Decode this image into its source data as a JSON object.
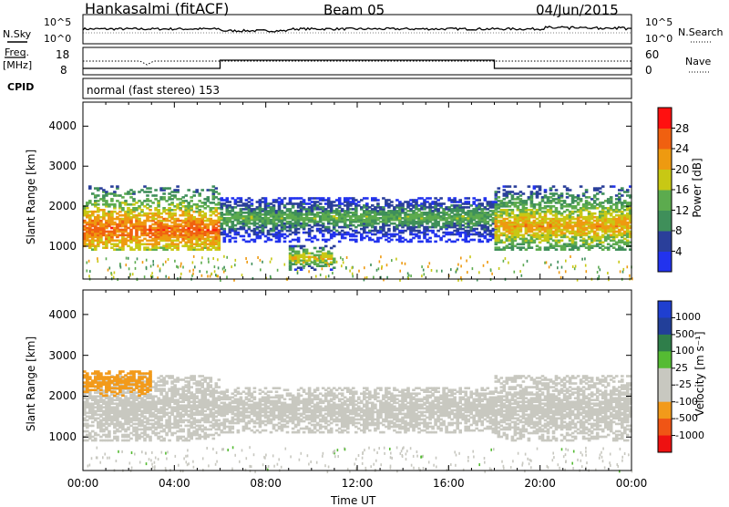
{
  "header": {
    "title": "Hankasalmi (fitACF)",
    "beam": "Beam 05",
    "date": "04/Jun/2015"
  },
  "strips": {
    "nsky_label": "N.Sky",
    "nsearch_label": "N.Search",
    "nsky_ticks": [
      "10^5",
      "10^0"
    ],
    "freq_label_1": "Freq.",
    "freq_label_2": "[MHz]",
    "freq_ticks": [
      "18",
      "8"
    ],
    "nave_label": "Nave",
    "nave_ticks": [
      "60",
      "0"
    ],
    "cpid_label": "CPID",
    "cpid_text": "normal (fast stereo) 153"
  },
  "colors": {
    "power": [
      "#2233ee",
      "#2a3f9a",
      "#3f8f5a",
      "#5cab4e",
      "#c8c814",
      "#ee9a10",
      "#f06010",
      "#ff1010"
    ],
    "velocity": [
      "#ee1111",
      "#f05515",
      "#f29a1a",
      "#c8c8c0",
      "#c8c8c0",
      "#55bb33",
      "#2f7e4a",
      "#223f99",
      "#1f3fd0"
    ]
  },
  "chart_data": [
    {
      "type": "heatmap",
      "title": "",
      "xlabel": "",
      "ylabel": "Slant Range [km]",
      "x_ticks": [
        "00:00",
        "04:00",
        "08:00",
        "12:00",
        "16:00",
        "20:00",
        "00:00"
      ],
      "y_ticks": [
        "1000",
        "2000",
        "3000",
        "4000"
      ],
      "xlim_hours": [
        0,
        24
      ],
      "ylim_km": [
        180,
        4600
      ],
      "colorbar_label": "Power [dB]",
      "colorbar_ticks": [
        "4",
        "8",
        "12",
        "16",
        "20",
        "24",
        "28"
      ],
      "colorbar_range": [
        0,
        32
      ],
      "scatter_bands": [
        {
          "t_start": 0,
          "t_end": 6,
          "range_km": [
            900,
            2500
          ],
          "core_km": 1400,
          "value": 26
        },
        {
          "t_start": 6,
          "t_end": 18,
          "range_km": [
            1100,
            2200
          ],
          "core_km": 1700,
          "value": 14
        },
        {
          "t_start": 9,
          "t_end": 11,
          "range_km": [
            400,
            1000
          ],
          "core_km": 700,
          "value": 20
        },
        {
          "t_start": 18,
          "t_end": 24,
          "range_km": [
            900,
            2500
          ],
          "core_km": 1500,
          "value": 22
        }
      ]
    },
    {
      "type": "heatmap",
      "title": "",
      "xlabel": "Time UT",
      "ylabel": "Slant Range [km]",
      "x_ticks": [
        "00:00",
        "04:00",
        "08:00",
        "12:00",
        "16:00",
        "20:00",
        "00:00"
      ],
      "y_ticks": [
        "1000",
        "2000",
        "3000",
        "4000"
      ],
      "xlim_hours": [
        0,
        24
      ],
      "ylim_km": [
        180,
        4600
      ],
      "colorbar_label": "Velocity [m s⁻¹]",
      "colorbar_ticks": [
        "1000",
        "500",
        "100",
        "25",
        "-25",
        "-100",
        "-500",
        "-1000"
      ],
      "scatter_bands": [
        {
          "t_start": 0,
          "t_end": 6,
          "range_km": [
            900,
            2500
          ],
          "value": -20
        },
        {
          "t_start": 0,
          "t_end": 3,
          "range_km": [
            2000,
            2600
          ],
          "value": -300
        },
        {
          "t_start": 6,
          "t_end": 18,
          "range_km": [
            1100,
            2200
          ],
          "value": 0
        },
        {
          "t_start": 18,
          "t_end": 24,
          "range_km": [
            900,
            2500
          ],
          "value": -40
        }
      ]
    }
  ]
}
